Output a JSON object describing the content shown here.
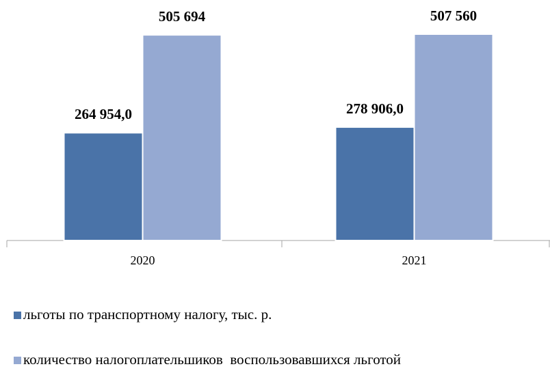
{
  "chart_data": {
    "type": "bar",
    "categories": [
      "2020",
      "2021"
    ],
    "series": [
      {
        "name": "льготы по транспортному налогу, тыс. р.",
        "color": "#4a73a8",
        "values": [
          264954.0,
          278906.0
        ],
        "value_labels": [
          "264 954,0",
          "278 906,0"
        ]
      },
      {
        "name": "количество налогоплательшиков  воспользовавшихся льготой",
        "color": "#95a9d2",
        "values": [
          505694,
          507560
        ],
        "value_labels": [
          "505 694",
          "507 560"
        ]
      }
    ]
  }
}
